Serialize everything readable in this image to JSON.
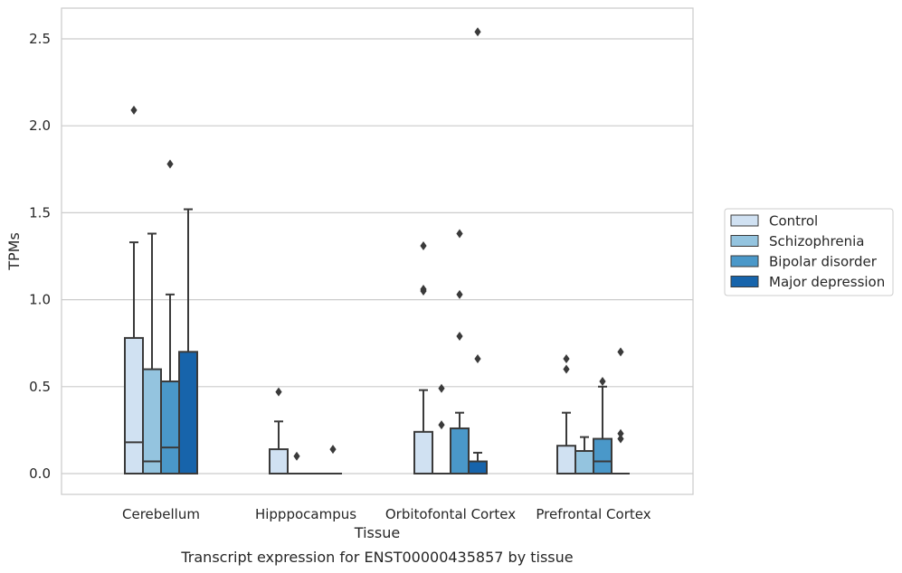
{
  "chart_data": {
    "type": "boxplot",
    "title": "",
    "caption": "Transcript expression for ENST00000435857 by tissue",
    "xlabel": "Tissue",
    "ylabel": "TPMs",
    "ylim": [
      -0.12,
      2.68
    ],
    "yticks": [
      0.0,
      0.5,
      1.0,
      1.5,
      2.0,
      2.5
    ],
    "ytick_labels": [
      "0.0",
      "0.5",
      "1.0",
      "1.5",
      "2.0",
      "2.5"
    ],
    "grid": "horizontal",
    "legend_position": "right",
    "categories": [
      "Cerebellum",
      "Hipppocampus",
      "Orbitofontal Cortex",
      "Prefrontal Cortex"
    ],
    "series": [
      {
        "name": "Control",
        "color": "#d0e1f2",
        "boxes": [
          {
            "q1": 0.0,
            "median": 0.18,
            "q3": 0.78,
            "whisker_low": 0.0,
            "whisker_high": 1.33,
            "outliers": [
              2.09
            ]
          },
          {
            "q1": 0.0,
            "median": 0.0,
            "q3": 0.14,
            "whisker_low": 0.0,
            "whisker_high": 0.3,
            "outliers": [
              0.47
            ]
          },
          {
            "q1": 0.0,
            "median": 0.0,
            "q3": 0.24,
            "whisker_low": 0.0,
            "whisker_high": 0.48,
            "outliers": [
              1.05,
              1.06,
              1.31
            ]
          },
          {
            "q1": 0.0,
            "median": 0.0,
            "q3": 0.16,
            "whisker_low": 0.0,
            "whisker_high": 0.35,
            "outliers": [
              0.6,
              0.66
            ]
          }
        ]
      },
      {
        "name": "Schizophrenia",
        "color": "#94c4df",
        "boxes": [
          {
            "q1": 0.0,
            "median": 0.07,
            "q3": 0.6,
            "whisker_low": 0.0,
            "whisker_high": 1.38,
            "outliers": []
          },
          {
            "q1": 0.0,
            "median": 0.0,
            "q3": 0.0,
            "whisker_low": 0.0,
            "whisker_high": 0.0,
            "outliers": [
              0.1
            ]
          },
          {
            "q1": 0.0,
            "median": 0.0,
            "q3": 0.0,
            "whisker_low": 0.0,
            "whisker_high": 0.0,
            "outliers": [
              0.28,
              0.49
            ]
          },
          {
            "q1": 0.0,
            "median": 0.0,
            "q3": 0.13,
            "whisker_low": 0.0,
            "whisker_high": 0.21,
            "outliers": []
          }
        ]
      },
      {
        "name": "Bipolar disorder",
        "color": "#4a98c9",
        "boxes": [
          {
            "q1": 0.0,
            "median": 0.15,
            "q3": 0.53,
            "whisker_low": 0.0,
            "whisker_high": 1.03,
            "outliers": [
              1.78
            ]
          },
          {
            "q1": 0.0,
            "median": 0.0,
            "q3": 0.0,
            "whisker_low": 0.0,
            "whisker_high": 0.0,
            "outliers": []
          },
          {
            "q1": 0.0,
            "median": 0.0,
            "q3": 0.26,
            "whisker_low": 0.0,
            "whisker_high": 0.35,
            "outliers": [
              0.79,
              1.03,
              1.38
            ]
          },
          {
            "q1": 0.0,
            "median": 0.07,
            "q3": 0.2,
            "whisker_low": 0.0,
            "whisker_high": 0.5,
            "outliers": [
              0.53
            ]
          }
        ]
      },
      {
        "name": "Major depression",
        "color": "#1764ab",
        "boxes": [
          {
            "q1": 0.0,
            "median": 0.0,
            "q3": 0.7,
            "whisker_low": 0.0,
            "whisker_high": 1.52,
            "outliers": []
          },
          {
            "q1": 0.0,
            "median": 0.0,
            "q3": 0.0,
            "whisker_low": 0.0,
            "whisker_high": 0.0,
            "outliers": [
              0.14
            ]
          },
          {
            "q1": 0.0,
            "median": 0.0,
            "q3": 0.07,
            "whisker_low": 0.0,
            "whisker_high": 0.12,
            "outliers": [
              0.66,
              2.54
            ]
          },
          {
            "q1": 0.0,
            "median": 0.0,
            "q3": 0.0,
            "whisker_low": 0.0,
            "whisker_high": 0.0,
            "outliers": [
              0.2,
              0.23,
              0.7
            ]
          }
        ]
      }
    ],
    "style": {
      "axis_color": "#cccccc",
      "grid_color": "#cccccc",
      "line_color": "#3a3a3a",
      "text_color": "#262626"
    }
  }
}
